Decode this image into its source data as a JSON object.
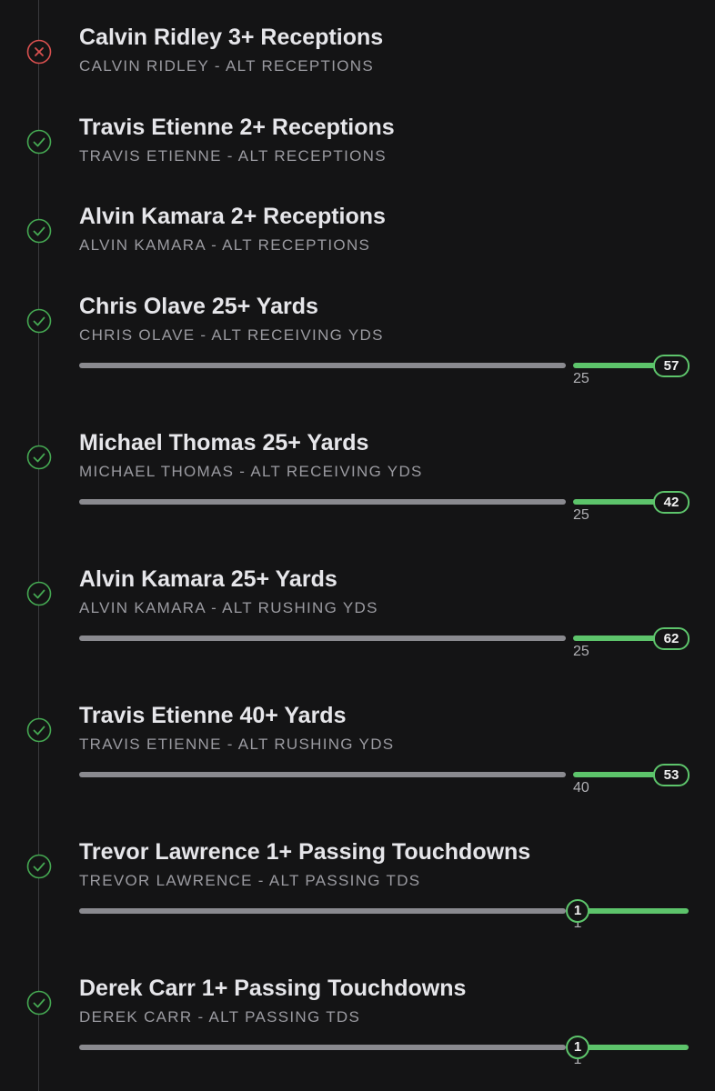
{
  "legs": [
    {
      "title": "Calvin Ridley 3+ Receptions",
      "subtitle": "CALVIN RIDLEY - ALT RECEPTIONS",
      "status": "lost"
    },
    {
      "title": "Travis Etienne 2+ Receptions",
      "subtitle": "TRAVIS ETIENNE - ALT RECEPTIONS",
      "status": "won"
    },
    {
      "title": "Alvin Kamara 2+ Receptions",
      "subtitle": "ALVIN KAMARA - ALT RECEPTIONS",
      "status": "won"
    },
    {
      "title": "Chris Olave 25+ Yards",
      "subtitle": "CHRIS OLAVE - ALT RECEIVING YDS",
      "status": "won",
      "progress": {
        "threshold": 25,
        "value": 57
      }
    },
    {
      "title": "Michael Thomas 25+ Yards",
      "subtitle": "MICHAEL THOMAS - ALT RECEIVING YDS",
      "status": "won",
      "progress": {
        "threshold": 25,
        "value": 42
      }
    },
    {
      "title": "Alvin Kamara 25+ Yards",
      "subtitle": "ALVIN KAMARA - ALT RUSHING YDS",
      "status": "won",
      "progress": {
        "threshold": 25,
        "value": 62
      }
    },
    {
      "title": "Travis Etienne 40+ Yards",
      "subtitle": "TRAVIS ETIENNE - ALT RUSHING YDS",
      "status": "won",
      "progress": {
        "threshold": 40,
        "value": 53
      }
    },
    {
      "title": "Trevor Lawrence 1+ Passing Touchdowns",
      "subtitle": "TREVOR LAWRENCE - ALT PASSING TDS",
      "status": "won",
      "progress": {
        "threshold": 1,
        "value": 1
      }
    },
    {
      "title": "Derek Carr 1+ Passing Touchdowns",
      "subtitle": "DEREK CARR - ALT PASSING TDS",
      "status": "won",
      "progress": {
        "threshold": 1,
        "value": 1
      }
    }
  ]
}
